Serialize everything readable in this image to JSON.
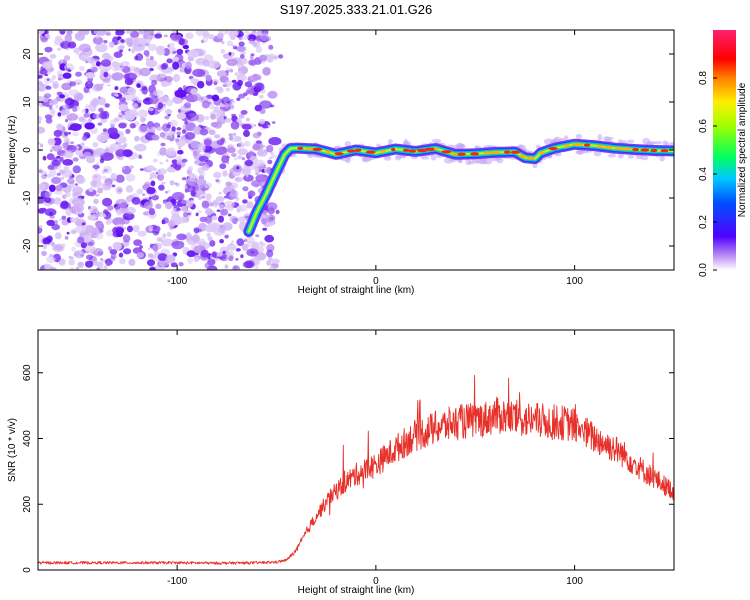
{
  "title": "S197.2025.333.21.01.G26",
  "chart_data": [
    {
      "type": "heatmap",
      "name": "spectrogram",
      "xlabel": "Height of straight line (km)",
      "ylabel": "Frequency (Hz)",
      "xlim": [
        -170,
        150
      ],
      "ylim": [
        -25,
        25
      ],
      "xticks": [
        "-100",
        "0",
        "100"
      ],
      "xtick_values": [
        -100,
        0,
        100
      ],
      "yticks": [
        "-20",
        "-10",
        "0",
        "10",
        "20"
      ],
      "ytick_values": [
        -20,
        -10,
        0,
        10,
        20
      ],
      "noise_region_x": [
        -170,
        -52
      ],
      "ridge": {
        "height_km": [
          -64,
          -60,
          -55,
          -50,
          -46,
          -43,
          -40,
          -30,
          -20,
          -10,
          0,
          10,
          20,
          30,
          40,
          50,
          60,
          70,
          75,
          80,
          83,
          90,
          100,
          110,
          120,
          130,
          140,
          150
        ],
        "frequency_hz": [
          -17.0,
          -13.0,
          -9.0,
          -4.5,
          -1.0,
          0.3,
          0.4,
          0.2,
          -0.9,
          0.0,
          -0.6,
          0.2,
          -0.3,
          0.3,
          -0.9,
          -0.8,
          -0.5,
          -0.4,
          -1.6,
          -1.8,
          -0.6,
          0.4,
          1.2,
          0.9,
          0.4,
          0.1,
          -0.1,
          -0.2
        ]
      },
      "colorbar": {
        "label": "Normalized spectral amplitude",
        "range": [
          0,
          1
        ],
        "ticks": [
          "0.0",
          "0.2",
          "0.4",
          "0.6",
          "0.8"
        ],
        "tick_values": [
          0,
          0.2,
          0.4,
          0.6,
          0.8
        ]
      }
    },
    {
      "type": "line",
      "name": "snr",
      "xlabel": "Height of straight line (km)",
      "ylabel": "SNR (10 * v/v)",
      "xlim": [
        -170,
        150
      ],
      "ylim": [
        0,
        730
      ],
      "xticks": [
        "-100",
        "0",
        "100"
      ],
      "xtick_values": [
        -100,
        0,
        100
      ],
      "yticks": [
        "0",
        "200",
        "400",
        "600"
      ],
      "ytick_values": [
        0,
        200,
        400,
        600
      ],
      "color": "#e8302a",
      "x": [
        -170,
        -150,
        -120,
        -100,
        -80,
        -60,
        -50,
        -45,
        -40,
        -35,
        -30,
        -25,
        -20,
        -15,
        -10,
        -5,
        0,
        5,
        10,
        15,
        20,
        25,
        30,
        35,
        40,
        45,
        50,
        55,
        60,
        65,
        70,
        75,
        80,
        85,
        90,
        95,
        100,
        105,
        110,
        115,
        120,
        125,
        130,
        135,
        140,
        145,
        150
      ],
      "y": [
        22,
        22,
        22,
        22,
        21,
        22,
        24,
        30,
        60,
        115,
        165,
        205,
        240,
        268,
        290,
        305,
        320,
        345,
        368,
        390,
        410,
        420,
        432,
        440,
        448,
        452,
        455,
        460,
        470,
        468,
        462,
        458,
        455,
        452,
        450,
        447,
        440,
        420,
        400,
        385,
        370,
        350,
        325,
        300,
        280,
        258,
        240
      ]
    }
  ]
}
